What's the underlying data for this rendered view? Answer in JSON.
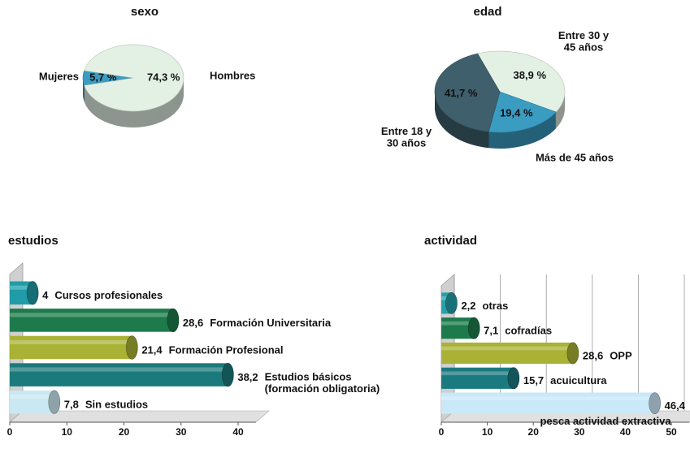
{
  "chart_data": [
    {
      "type": "pie",
      "title": "sexo",
      "categories": [
        "Mujeres",
        "Hombres"
      ],
      "values": [
        5.7,
        74.3
      ],
      "value_labels": [
        "5,7 %",
        "74,3 %"
      ],
      "colors": [
        "#3b9cc2",
        "#e3f1e5"
      ]
    },
    {
      "type": "pie",
      "title": "edad",
      "categories": [
        "Entre 30 y 45 años",
        "Más de 45 años",
        "Entre 18 y 30 años"
      ],
      "values": [
        38.9,
        19.4,
        41.7
      ],
      "value_labels": [
        "38,9 %",
        "19,4 %",
        "41,7 %"
      ],
      "colors": [
        "#e3f1e5",
        "#3b9cc2",
        "#3e5f6b"
      ]
    },
    {
      "type": "bar",
      "orientation": "horizontal",
      "title": "estudios",
      "categories": [
        "Cursos profesionales",
        "Formación Universitaria",
        "Formación Profesional",
        "Estudios básicos (formación obligatoria)",
        "Sin estudios"
      ],
      "values": [
        4,
        28.6,
        21.4,
        38.2,
        7.8
      ],
      "value_labels": [
        "4",
        "28,6",
        "21,4",
        "38,2",
        "7,8"
      ],
      "colors": [
        "#1f9ca8",
        "#1d7b4b",
        "#a9b234",
        "#1b7a7c",
        "#c9e8f1"
      ],
      "xlim": [
        0,
        40
      ],
      "xticks": [
        0,
        10,
        20,
        30,
        40
      ],
      "grid": false
    },
    {
      "type": "bar",
      "orientation": "horizontal",
      "title": "actividad",
      "categories": [
        "otras",
        "cofradías",
        "OPP",
        "acuicultura",
        "pesca actividad extractiva"
      ],
      "values": [
        2.2,
        7.1,
        28.6,
        15.7,
        46.4
      ],
      "value_labels": [
        "2,2",
        "7,1",
        "28,6",
        "15,7",
        "46,4"
      ],
      "colors": [
        "#27a0aa",
        "#1d7b4b",
        "#a9b234",
        "#1b7a80",
        "#c9e8f8"
      ],
      "xlim": [
        0,
        50
      ],
      "xticks": [
        0,
        10,
        20,
        30,
        40,
        50
      ],
      "grid": true
    }
  ]
}
